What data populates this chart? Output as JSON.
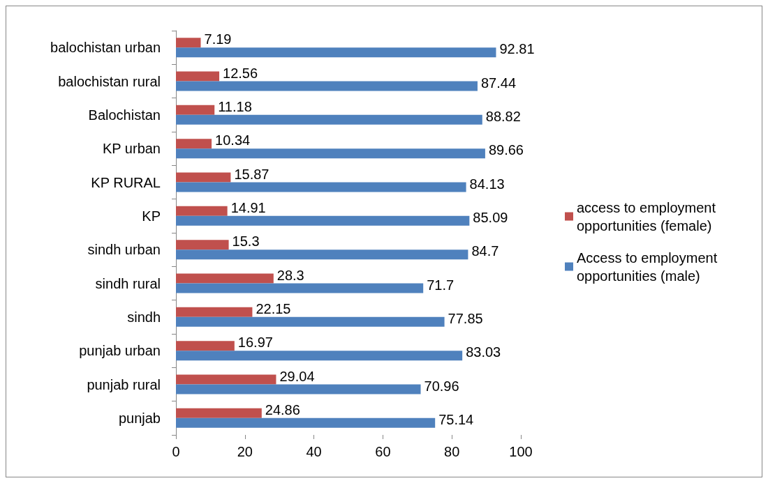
{
  "chart_data": {
    "type": "bar",
    "orientation": "horizontal",
    "categories": [
      "balochistan urban",
      "balochistan rural",
      "Balochistan",
      "KP urban",
      "KP RURAL",
      "KP",
      "sindh urban",
      "sindh rural",
      "sindh",
      "punjab urban",
      "punjab rural",
      "punjab"
    ],
    "series": [
      {
        "name": "access to employment opportunities (female)",
        "color": "#c0504d",
        "values": [
          7.19,
          12.56,
          11.18,
          10.34,
          15.87,
          14.91,
          15.3,
          28.3,
          22.15,
          16.97,
          29.04,
          24.86
        ]
      },
      {
        "name": "Access to employment opportunities (male)",
        "color": "#4f81bd",
        "values": [
          92.81,
          87.44,
          88.82,
          89.66,
          84.13,
          85.09,
          84.7,
          71.7,
          77.85,
          83.03,
          70.96,
          75.14
        ]
      }
    ],
    "xlim": [
      0,
      100
    ],
    "xticks": [
      0,
      20,
      40,
      60,
      80,
      100
    ],
    "grid": false,
    "legend": "right",
    "data_labels": true
  }
}
